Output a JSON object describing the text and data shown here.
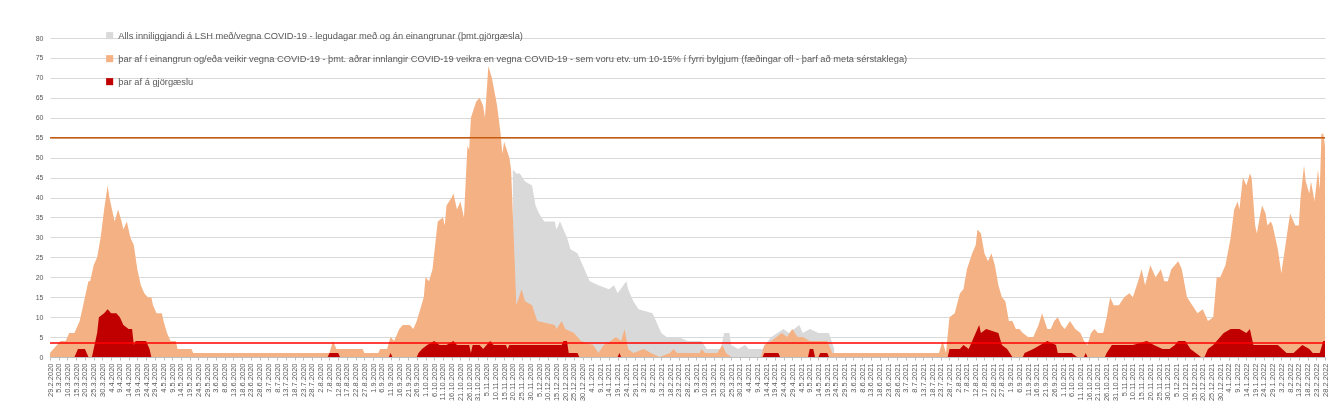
{
  "chart_data": {
    "type": "area",
    "series": [
      {
        "name": "Alls inniliggjandi á LSH með/vegna COVID-19 - legudagar með og án einangrunar (þmt.gjörgæsla)",
        "color": "#d9d9d9",
        "x": [
          "2020-11-20",
          "2020-11-22",
          "2020-11-24",
          "2020-11-27",
          "2020-12-01",
          "2020-12-03",
          "2020-12-05",
          "2020-12-08",
          "2020-12-14",
          "2020-12-15",
          "2020-12-17",
          "2020-12-21",
          "2020-12-23",
          "2020-12-27",
          "2020-12-30",
          "2021-01-03",
          "2021-01-08",
          "2021-01-14",
          "2021-01-17",
          "2021-01-19",
          "2021-01-24",
          "2021-01-25",
          "2021-01-28",
          "2021-01-31",
          "2021-02-08",
          "2021-02-13",
          "2021-02-16",
          "2021-02-23",
          "2021-02-28",
          "2021-03-08",
          "2021-03-11",
          "2021-03-19",
          "2021-03-21",
          "2021-03-24",
          "2021-03-25",
          "2021-03-29",
          "2021-04-02",
          "2021-04-04",
          "2021-04-12",
          "2021-04-15",
          "2021-04-17",
          "2021-04-24",
          "2021-04-27",
          "2021-05-03",
          "2021-05-05",
          "2021-05-09",
          "2021-05-14",
          "2021-05-20",
          "2021-05-23"
        ],
        "values": [
          47,
          46,
          46,
          44,
          43,
          38,
          36,
          34,
          34,
          32,
          34,
          30,
          27,
          26,
          23,
          19,
          18,
          17,
          18,
          16,
          19,
          17,
          14,
          12,
          11,
          6,
          5,
          5,
          4,
          4,
          2,
          2,
          6,
          6,
          3,
          2,
          3,
          2,
          2,
          4,
          5,
          7,
          6,
          8,
          6,
          7,
          6,
          6,
          2
        ]
      },
      {
        "name": "þar af í einangrun og/eða veikir vegna COVID-19 - þmt. aðrar innlangir COVID-19 veikra en vegna COVID-19 - sem voru etv. um 10-15% í fyrri bylgjum (fæðingar ofl - þarf að meta sérstaklega)",
        "color": "#f4b183",
        "x": [
          "2020-02-29",
          "2020-03-06",
          "2020-03-09",
          "2020-03-10",
          "2020-03-11",
          "2020-03-14",
          "2020-03-15",
          "2020-03-17",
          "2020-03-19",
          "2020-03-22",
          "2020-03-23",
          "2020-03-25",
          "2020-03-27",
          "2020-03-29",
          "2020-03-31",
          "2020-04-02",
          "2020-04-03",
          "2020-04-06",
          "2020-04-08",
          "2020-04-10",
          "2020-04-11",
          "2020-04-13",
          "2020-04-15",
          "2020-04-17",
          "2020-04-19",
          "2020-04-21",
          "2020-04-23",
          "2020-04-25",
          "2020-04-27",
          "2020-04-28",
          "2020-04-30",
          "2020-05-03",
          "2020-05-04",
          "2020-05-06",
          "2020-05-08",
          "2020-05-11",
          "2020-05-12",
          "2020-05-20",
          "2020-05-21",
          "2020-08-07",
          "2020-08-09",
          "2020-08-11",
          "2020-08-26",
          "2020-08-27",
          "2020-09-04",
          "2020-09-05",
          "2020-09-09",
          "2020-09-11",
          "2020-09-13",
          "2020-09-16",
          "2020-09-18",
          "2020-09-22",
          "2020-09-24",
          "2020-09-26",
          "2020-09-28",
          "2020-09-30",
          "2020-10-01",
          "2020-10-03",
          "2020-10-05",
          "2020-10-08",
          "2020-10-11",
          "2020-10-12",
          "2020-10-13",
          "2020-10-16",
          "2020-10-17",
          "2020-10-19",
          "2020-10-21",
          "2020-10-23",
          "2020-10-25",
          "2020-10-26",
          "2020-10-27",
          "2020-10-30",
          "2020-11-01",
          "2020-11-03",
          "2020-11-04",
          "2020-11-06",
          "2020-11-08",
          "2020-11-11",
          "2020-11-13",
          "2020-11-14",
          "2020-11-15",
          "2020-11-18",
          "2020-11-19",
          "2020-11-22",
          "2020-11-25",
          "2020-11-27",
          "2020-12-01",
          "2020-12-04",
          "2020-12-14",
          "2020-12-15",
          "2020-12-18",
          "2020-12-20",
          "2020-12-25",
          "2020-12-29",
          "2021-01-05",
          "2021-01-08",
          "2021-01-11",
          "2021-01-15",
          "2021-01-18",
          "2021-01-21",
          "2021-01-23",
          "2021-01-25",
          "2021-01-28",
          "2021-02-03",
          "2021-02-07",
          "2021-02-12",
          "2021-02-18",
          "2021-02-20",
          "2021-02-22",
          "2021-03-07",
          "2021-03-08",
          "2021-03-10",
          "2021-03-17",
          "2021-03-20",
          "2021-03-22",
          "2021-03-25",
          "2021-04-11",
          "2021-04-13",
          "2021-04-17",
          "2021-04-23",
          "2021-04-26",
          "2021-04-29",
          "2021-05-02",
          "2021-05-05",
          "2021-05-09",
          "2021-05-19",
          "2021-05-22",
          "2021-07-22",
          "2021-07-24",
          "2021-07-26",
          "2021-07-28",
          "2021-07-31",
          "2021-08-03",
          "2021-08-05",
          "2021-08-07",
          "2021-08-10",
          "2021-08-12",
          "2021-08-13",
          "2021-08-15",
          "2021-08-17",
          "2021-08-19",
          "2021-08-21",
          "2021-08-23",
          "2021-08-25",
          "2021-08-27",
          "2021-08-29",
          "2021-08-31",
          "2021-09-02",
          "2021-09-04",
          "2021-09-06",
          "2021-09-08",
          "2021-09-11",
          "2021-09-14",
          "2021-09-17",
          "2021-09-19",
          "2021-09-22",
          "2021-09-24",
          "2021-09-26",
          "2021-09-28",
          "2021-09-30",
          "2021-10-02",
          "2021-10-05",
          "2021-10-08",
          "2021-10-11",
          "2021-10-13",
          "2021-10-15",
          "2021-10-17",
          "2021-10-19",
          "2021-10-21",
          "2021-10-24",
          "2021-10-26",
          "2021-10-28",
          "2021-10-30",
          "2021-11-02",
          "2021-11-05",
          "2021-11-08",
          "2021-11-10",
          "2021-11-13",
          "2021-11-15",
          "2021-11-17",
          "2021-11-20",
          "2021-11-23",
          "2021-11-26",
          "2021-11-28",
          "2021-11-30",
          "2021-12-02",
          "2021-12-06",
          "2021-12-08",
          "2021-12-11",
          "2021-12-14",
          "2021-12-17",
          "2021-12-20",
          "2021-12-23",
          "2021-12-26",
          "2021-12-28",
          "2021-12-30",
          "2022-01-02",
          "2022-01-05",
          "2022-01-07",
          "2022-01-09",
          "2022-01-10",
          "2022-01-12",
          "2022-01-14",
          "2022-01-16",
          "2022-01-17",
          "2022-01-19",
          "2022-01-20",
          "2022-01-22",
          "2022-01-23",
          "2022-01-25",
          "2022-01-26",
          "2022-01-28",
          "2022-01-29",
          "2022-02-01",
          "2022-02-03",
          "2022-02-07",
          "2022-02-08",
          "2022-02-11",
          "2022-02-13",
          "2022-02-14",
          "2022-02-16",
          "2022-02-17",
          "2022-02-19",
          "2022-02-20",
          "2022-02-22",
          "2022-02-24",
          "2022-02-25",
          "2022-02-26",
          "2022-02-27",
          "2022-02-28"
        ],
        "values": [
          1,
          4,
          4,
          5,
          6,
          6,
          7,
          9,
          13,
          19,
          19,
          23,
          25,
          30,
          37,
          43,
          40,
          34,
          37,
          34,
          32,
          34,
          30,
          28,
          22,
          18,
          16,
          15,
          15,
          13,
          11,
          11,
          9,
          6,
          4,
          4,
          2,
          2,
          1,
          1,
          4,
          2,
          2,
          1,
          1,
          2,
          2,
          5,
          4,
          7,
          8,
          8,
          7,
          9,
          12,
          15,
          20,
          19,
          22,
          34,
          35,
          33,
          38,
          40,
          41,
          37,
          39,
          35,
          53,
          52,
          60,
          64,
          65,
          63,
          60,
          73,
          70,
          63,
          56,
          51,
          54,
          50,
          47,
          13,
          17,
          14,
          13,
          9,
          8,
          7,
          9,
          7,
          6,
          4,
          3,
          1,
          3,
          4,
          5,
          4,
          7,
          2,
          1,
          2,
          1,
          0,
          1,
          2,
          1,
          1,
          2,
          1,
          1,
          3,
          1,
          0,
          0,
          3,
          4,
          6,
          5,
          7,
          5,
          5,
          4,
          4,
          1,
          1,
          4,
          1,
          10,
          11,
          16,
          17,
          22,
          26,
          28,
          32,
          31,
          26,
          24,
          26,
          23,
          18,
          15,
          14,
          9,
          9,
          7,
          7,
          6,
          5,
          5,
          8,
          11,
          7,
          7,
          9,
          10,
          8,
          7,
          9,
          7,
          6,
          4,
          3,
          6,
          7,
          6,
          6,
          10,
          15,
          13,
          13,
          15,
          16,
          15,
          19,
          22,
          18,
          23,
          20,
          22,
          19,
          19,
          22,
          24,
          22,
          15,
          13,
          11,
          12,
          9,
          10,
          20,
          20,
          23,
          30,
          37,
          39,
          37,
          45,
          43,
          46,
          45,
          33,
          31,
          36,
          38,
          36,
          33,
          34,
          33,
          27,
          21,
          33,
          36,
          33,
          33,
          40,
          48,
          44,
          41,
          44,
          39,
          47,
          42,
          56,
          56,
          53
        ]
      },
      {
        "name": "þar af á gjörgæslu",
        "color": "#c00000",
        "x": [
          "2020-02-29",
          "2020-03-14",
          "2020-03-15",
          "2020-03-16",
          "2020-03-20",
          "2020-03-21",
          "2020-03-22",
          "2020-03-24",
          "2020-03-25",
          "2020-03-27",
          "2020-03-28",
          "2020-03-31",
          "2020-04-02",
          "2020-04-04",
          "2020-04-07",
          "2020-04-09",
          "2020-04-11",
          "2020-04-14",
          "2020-04-16",
          "2020-04-17",
          "2020-04-18",
          "2020-04-24",
          "2020-04-26",
          "2020-04-27",
          "2020-08-06",
          "2020-08-07",
          "2020-08-12",
          "2020-08-13",
          "2020-09-10",
          "2020-09-11",
          "2020-09-12",
          "2020-09-26",
          "2020-09-27",
          "2020-09-29",
          "2020-10-02",
          "2020-10-06",
          "2020-10-09",
          "2020-10-13",
          "2020-10-17",
          "2020-10-19",
          "2020-10-26",
          "2020-10-27",
          "2020-10-28",
          "2020-11-01",
          "2020-11-03",
          "2020-11-07",
          "2020-11-09",
          "2020-11-16",
          "2020-11-17",
          "2020-11-18",
          "2020-12-18",
          "2020-12-19",
          "2020-12-21",
          "2020-12-22",
          "2020-12-27",
          "2020-12-28",
          "2021-01-19",
          "2021-01-20",
          "2021-01-21",
          "2021-04-12",
          "2021-04-13",
          "2021-04-21",
          "2021-04-22",
          "2021-05-08",
          "2021-05-09",
          "2021-05-11",
          "2021-05-12",
          "2021-05-14",
          "2021-05-15",
          "2021-05-19",
          "2021-05-20",
          "2021-07-27",
          "2021-07-28",
          "2021-08-03",
          "2021-08-05",
          "2021-08-08",
          "2021-08-12",
          "2021-08-14",
          "2021-08-15",
          "2021-08-18",
          "2021-08-25",
          "2021-08-27",
          "2021-08-30",
          "2021-09-02",
          "2021-09-08",
          "2021-09-09",
          "2021-09-14",
          "2021-09-22",
          "2021-09-27",
          "2021-09-28",
          "2021-10-06",
          "2021-10-09",
          "2021-10-13",
          "2021-10-14",
          "2021-10-15",
          "2021-10-25",
          "2021-10-26",
          "2021-10-29",
          "2021-11-10",
          "2021-11-18",
          "2021-11-22",
          "2021-11-27",
          "2021-12-01",
          "2021-12-04",
          "2021-12-06",
          "2021-12-10",
          "2021-12-13",
          "2021-12-19",
          "2021-12-21",
          "2021-12-23",
          "2021-12-26",
          "2022-01-01",
          "2022-01-05",
          "2022-01-10",
          "2022-01-14",
          "2022-01-16",
          "2022-01-18",
          "2022-01-26",
          "2022-02-01",
          "2022-02-06",
          "2022-02-10",
          "2022-02-15",
          "2022-02-19",
          "2022-02-21",
          "2022-02-25",
          "2022-02-27",
          "2022-02-28"
        ],
        "values": [
          0,
          0,
          1,
          2,
          2,
          1,
          0,
          0,
          2,
          6,
          10,
          11,
          12,
          11,
          11,
          10,
          8,
          7,
          7,
          3,
          4,
          4,
          2,
          0,
          0,
          1,
          1,
          0,
          0,
          1,
          0,
          0,
          1,
          2,
          3,
          4,
          3,
          3,
          4,
          3,
          3,
          1,
          3,
          3,
          2,
          4,
          3,
          3,
          2,
          3,
          3,
          4,
          4,
          1,
          1,
          0,
          0,
          1,
          0,
          0,
          1,
          1,
          0,
          0,
          2,
          2,
          0,
          0,
          1,
          1,
          0,
          0,
          2,
          2,
          3,
          2,
          6,
          8,
          6,
          7,
          6,
          3,
          2,
          0,
          0,
          1,
          2,
          4,
          3,
          1,
          1,
          0,
          0,
          1,
          0,
          0,
          1,
          3,
          3,
          4,
          3,
          2,
          2,
          3,
          4,
          4,
          2,
          0,
          0,
          2,
          3,
          6,
          7,
          7,
          6,
          7,
          3,
          3,
          3,
          1,
          1,
          3,
          2,
          1,
          1,
          4,
          4
        ]
      }
    ],
    "xlim": [
      "2020-02-29",
      "2022-02-28"
    ],
    "xticks": [
      {
        "value": "2020-02-29",
        "label": "29.2.2020"
      },
      {
        "value": "2020-03-05",
        "label": "5.3.2020"
      },
      {
        "value": "2020-03-10",
        "label": "10.3.2020"
      },
      {
        "value": "2020-03-15",
        "label": "15.3.2020"
      },
      {
        "value": "2020-03-20",
        "label": "20.3.2020"
      },
      {
        "value": "2020-03-25",
        "label": "25.3.2020"
      },
      {
        "value": "2020-03-30",
        "label": "30.3.2020"
      },
      {
        "value": "2020-04-04",
        "label": "4.4.2020"
      },
      {
        "value": "2020-04-09",
        "label": "9.4.2020"
      },
      {
        "value": "2020-04-14",
        "label": "14.4.2020"
      },
      {
        "value": "2020-04-19",
        "label": "19.4.2020"
      },
      {
        "value": "2020-04-24",
        "label": "24.4.2020"
      },
      {
        "value": "2020-04-29",
        "label": "29.4.2020"
      },
      {
        "value": "2020-05-04",
        "label": "4.5.2020"
      },
      {
        "value": "2020-05-09",
        "label": "9.5.2020"
      },
      {
        "value": "2020-05-14",
        "label": "14.5.2020"
      },
      {
        "value": "2020-05-19",
        "label": "19.5.2020"
      },
      {
        "value": "2020-05-24",
        "label": "24.5.2020"
      },
      {
        "value": "2020-05-29",
        "label": "29.5.2020"
      },
      {
        "value": "2020-06-03",
        "label": "3.6.2020"
      },
      {
        "value": "2020-06-08",
        "label": "8.6.2020"
      },
      {
        "value": "2020-06-13",
        "label": "13.6.2020"
      },
      {
        "value": "2020-06-18",
        "label": "18.6.2020"
      },
      {
        "value": "2020-06-23",
        "label": "23.6.2020"
      },
      {
        "value": "2020-06-28",
        "label": "28.6.2020"
      },
      {
        "value": "2020-07-03",
        "label": "3.7.2020"
      },
      {
        "value": "2020-07-08",
        "label": "8.7.2020"
      },
      {
        "value": "2020-07-13",
        "label": "13.7.2020"
      },
      {
        "value": "2020-07-18",
        "label": "18.7.2020"
      },
      {
        "value": "2020-07-23",
        "label": "23.7.2020"
      },
      {
        "value": "2020-07-28",
        "label": "28.7.2020"
      },
      {
        "value": "2020-08-02",
        "label": "2.8.2020"
      },
      {
        "value": "2020-08-07",
        "label": "7.8.2020"
      },
      {
        "value": "2020-08-12",
        "label": "12.8.2020"
      },
      {
        "value": "2020-08-17",
        "label": "17.8.2020"
      },
      {
        "value": "2020-08-22",
        "label": "22.8.2020"
      },
      {
        "value": "2020-08-27",
        "label": "27.8.2020"
      },
      {
        "value": "2020-09-01",
        "label": "1.9.2020"
      },
      {
        "value": "2020-09-06",
        "label": "6.9.2020"
      },
      {
        "value": "2020-09-11",
        "label": "11.9.2020"
      },
      {
        "value": "2020-09-16",
        "label": "16.9.2020"
      },
      {
        "value": "2020-09-21",
        "label": "21.9.2020"
      },
      {
        "value": "2020-09-26",
        "label": "26.9.2020"
      },
      {
        "value": "2020-10-01",
        "label": "1.10.2020"
      },
      {
        "value": "2020-10-06",
        "label": "6.10.2020"
      },
      {
        "value": "2020-10-11",
        "label": "11.10.2020"
      },
      {
        "value": "2020-10-16",
        "label": "16.10.2020"
      },
      {
        "value": "2020-10-21",
        "label": "21.10.2020"
      },
      {
        "value": "2020-10-26",
        "label": "26.10.2020"
      },
      {
        "value": "2020-10-31",
        "label": "31.10.2020"
      },
      {
        "value": "2020-11-05",
        "label": "5.11.2020"
      },
      {
        "value": "2020-11-10",
        "label": "10.11.2020"
      },
      {
        "value": "2020-11-15",
        "label": "15.11.2020"
      },
      {
        "value": "2020-11-20",
        "label": "20.11.2020"
      },
      {
        "value": "2020-11-25",
        "label": "25.11.2020"
      },
      {
        "value": "2020-11-30",
        "label": "30.11.2020"
      },
      {
        "value": "2020-12-05",
        "label": "5.12.2020"
      },
      {
        "value": "2020-12-10",
        "label": "10.12.2020"
      },
      {
        "value": "2020-12-15",
        "label": "15.12.2020"
      },
      {
        "value": "2020-12-20",
        "label": "20.12.2020"
      },
      {
        "value": "2020-12-25",
        "label": "25.12.2020"
      },
      {
        "value": "2020-12-30",
        "label": "30.12.2020"
      },
      {
        "value": "2021-01-04",
        "label": "4.1.2021"
      },
      {
        "value": "2021-01-09",
        "label": "9.1.2021"
      },
      {
        "value": "2021-01-14",
        "label": "14.1.2021"
      },
      {
        "value": "2021-01-19",
        "label": "19.1.2021"
      },
      {
        "value": "2021-01-24",
        "label": "24.1.2021"
      },
      {
        "value": "2021-01-29",
        "label": "29.1.2021"
      },
      {
        "value": "2021-02-03",
        "label": "3.2.2021"
      },
      {
        "value": "2021-02-08",
        "label": "8.2.2021"
      },
      {
        "value": "2021-02-13",
        "label": "13.2.2021"
      },
      {
        "value": "2021-02-18",
        "label": "18.2.2021"
      },
      {
        "value": "2021-02-23",
        "label": "23.2.2021"
      },
      {
        "value": "2021-02-28",
        "label": "28.2.2021"
      },
      {
        "value": "2021-03-05",
        "label": "5.3.2021"
      },
      {
        "value": "2021-03-10",
        "label": "10.3.2021"
      },
      {
        "value": "2021-03-15",
        "label": "15.3.2021"
      },
      {
        "value": "2021-03-20",
        "label": "20.3.2021"
      },
      {
        "value": "2021-03-25",
        "label": "25.3.2021"
      },
      {
        "value": "2021-03-30",
        "label": "30.3.2021"
      },
      {
        "value": "2021-04-04",
        "label": "4.4.2021"
      },
      {
        "value": "2021-04-09",
        "label": "9.4.2021"
      },
      {
        "value": "2021-04-14",
        "label": "14.4.2021"
      },
      {
        "value": "2021-04-19",
        "label": "19.4.2021"
      },
      {
        "value": "2021-04-24",
        "label": "24.4.2021"
      },
      {
        "value": "2021-04-29",
        "label": "29.4.2021"
      },
      {
        "value": "2021-05-04",
        "label": "4.5.2021"
      },
      {
        "value": "2021-05-09",
        "label": "9.5.2021"
      },
      {
        "value": "2021-05-14",
        "label": "14.5.2021"
      },
      {
        "value": "2021-05-19",
        "label": "19.5.2021"
      },
      {
        "value": "2021-05-24",
        "label": "24.5.2021"
      },
      {
        "value": "2021-05-29",
        "label": "29.5.2021"
      },
      {
        "value": "2021-06-03",
        "label": "3.6.2021"
      },
      {
        "value": "2021-06-08",
        "label": "8.6.2021"
      },
      {
        "value": "2021-06-13",
        "label": "13.6.2021"
      },
      {
        "value": "2021-06-18",
        "label": "18.6.2021"
      },
      {
        "value": "2021-06-23",
        "label": "23.6.2021"
      },
      {
        "value": "2021-06-28",
        "label": "28.6.2021"
      },
      {
        "value": "2021-07-03",
        "label": "3.7.2021"
      },
      {
        "value": "2021-07-08",
        "label": "8.7.2021"
      },
      {
        "value": "2021-07-13",
        "label": "13.7.2021"
      },
      {
        "value": "2021-07-18",
        "label": "18.7.2021"
      },
      {
        "value": "2021-07-23",
        "label": "23.7.2021"
      },
      {
        "value": "2021-07-28",
        "label": "28.7.2021"
      },
      {
        "value": "2021-08-02",
        "label": "2.8.2021"
      },
      {
        "value": "2021-08-07",
        "label": "7.8.2021"
      },
      {
        "value": "2021-08-12",
        "label": "12.8.2021"
      },
      {
        "value": "2021-08-17",
        "label": "17.8.2021"
      },
      {
        "value": "2021-08-22",
        "label": "22.8.2021"
      },
      {
        "value": "2021-08-27",
        "label": "27.8.2021"
      },
      {
        "value": "2021-09-01",
        "label": "1.9.2021"
      },
      {
        "value": "2021-09-06",
        "label": "6.9.2021"
      },
      {
        "value": "2021-09-11",
        "label": "11.9.2021"
      },
      {
        "value": "2021-09-16",
        "label": "16.9.2021"
      },
      {
        "value": "2021-09-21",
        "label": "21.9.2021"
      },
      {
        "value": "2021-09-26",
        "label": "26.9.2021"
      },
      {
        "value": "2021-10-01",
        "label": "1.10.2021"
      },
      {
        "value": "2021-10-06",
        "label": "6.10.2021"
      },
      {
        "value": "2021-10-11",
        "label": "11.10.2021"
      },
      {
        "value": "2021-10-16",
        "label": "16.10.2021"
      },
      {
        "value": "2021-10-21",
        "label": "21.10.2021"
      },
      {
        "value": "2021-10-26",
        "label": "26.10.2021"
      },
      {
        "value": "2021-10-31",
        "label": "31.10.2021"
      },
      {
        "value": "2021-11-05",
        "label": "5.11.2021"
      },
      {
        "value": "2021-11-10",
        "label": "10.11.2021"
      },
      {
        "value": "2021-11-15",
        "label": "15.11.2021"
      },
      {
        "value": "2021-11-20",
        "label": "20.11.2021"
      },
      {
        "value": "2021-11-25",
        "label": "25.11.2021"
      },
      {
        "value": "2021-11-30",
        "label": "30.11.2021"
      },
      {
        "value": "2021-12-05",
        "label": "5.12.2021"
      },
      {
        "value": "2021-12-10",
        "label": "10.12.2021"
      },
      {
        "value": "2021-12-15",
        "label": "15.12.2021"
      },
      {
        "value": "2021-12-20",
        "label": "20.12.2021"
      },
      {
        "value": "2021-12-25",
        "label": "25.12.2021"
      },
      {
        "value": "2021-12-30",
        "label": "30.12.2021"
      },
      {
        "value": "2022-01-04",
        "label": "4.1.2022"
      },
      {
        "value": "2022-01-09",
        "label": "9.1.2022"
      },
      {
        "value": "2022-01-14",
        "label": "14.1.2022"
      },
      {
        "value": "2022-01-19",
        "label": "19.1.2022"
      },
      {
        "value": "2022-01-24",
        "label": "24.1.2022"
      },
      {
        "value": "2022-01-29",
        "label": "29.1.2022"
      },
      {
        "value": "2022-02-03",
        "label": "3.2.2022"
      },
      {
        "value": "2022-02-08",
        "label": "8.2.2022"
      },
      {
        "value": "2022-02-13",
        "label": "13.2.2022"
      },
      {
        "value": "2022-02-18",
        "label": "18.2.2022"
      },
      {
        "value": "2022-02-23",
        "label": "23.2.2022"
      },
      {
        "value": "2022-02-28",
        "label": "28.2.2022"
      }
    ],
    "ylim": [
      0,
      80
    ],
    "yticks": [
      0,
      5,
      10,
      15,
      20,
      25,
      30,
      35,
      40,
      45,
      50,
      55,
      60,
      65,
      70,
      75,
      80
    ],
    "grid": "y",
    "legend": "top left",
    "ref_lines": [
      {
        "axis": "y",
        "value": 55,
        "color": "#c55a11"
      },
      {
        "axis": "y",
        "value": 3.5,
        "color": "#ff0000"
      }
    ]
  }
}
